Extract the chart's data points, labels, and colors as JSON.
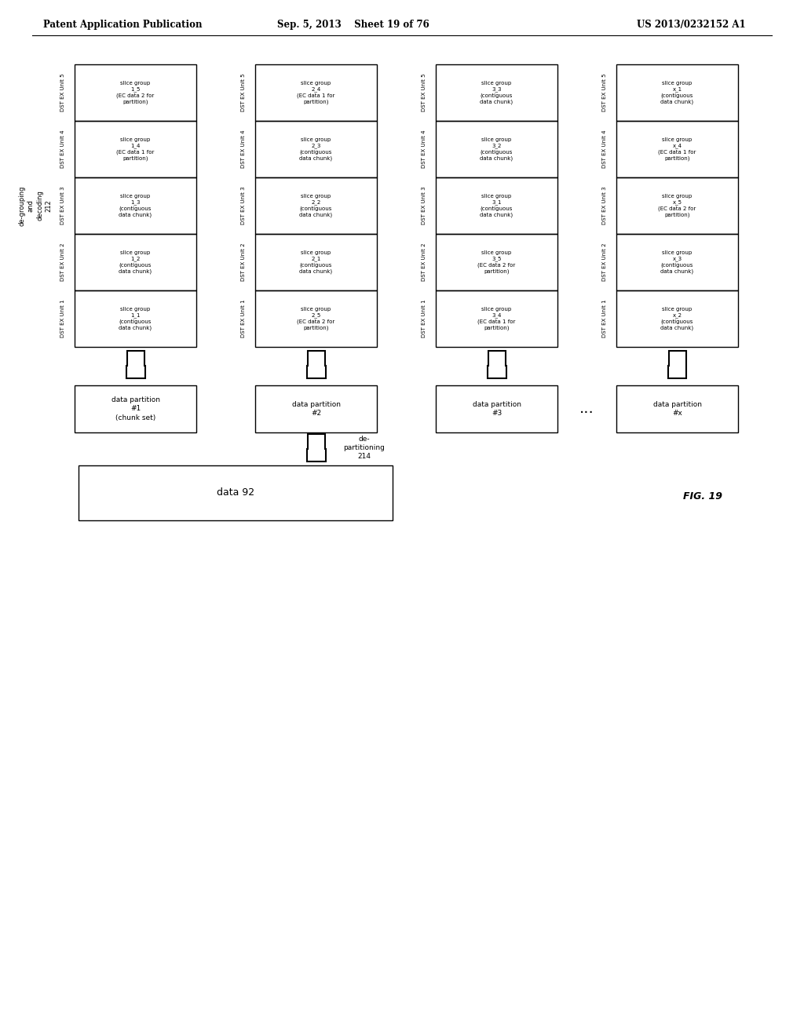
{
  "header_left": "Patent Application Publication",
  "header_mid": "Sep. 5, 2013   Sheet 19 of 76",
  "header_right": "US 2013/0232152 A1",
  "fig_label": "FIG. 19",
  "groups": [
    {
      "units": [
        "DST EX Unit 1",
        "DST EX Unit 2",
        "DST EX Unit 3",
        "DST EX Unit 4",
        "DST EX Unit 5"
      ],
      "cells": [
        "slice group\n1_1\n(contiguous\ndata chunk)",
        "slice group\n1_2\n(contiguous\ndata chunk)",
        "slice group\n1_3\n(contiguous\ndata chunk)",
        "slice group\n1_4\n(EC data 1 for\npartition)",
        "slice group\n1_5\n(EC data 2 for\npartition)"
      ]
    },
    {
      "units": [
        "DST EX Unit 1",
        "DST EX Unit 2",
        "DST EX Unit 3",
        "DST EX Unit 4",
        "DST EX Unit 5"
      ],
      "cells": [
        "slice group\n2_5\n(EC data 2 for\npartition)",
        "slice group\n2_1\n(contiguous\ndata chunk)",
        "slice group\n2_2\n(contiguous\ndata chunk)",
        "slice group\n2_3\n(contiguous\ndata chunk)",
        "slice group\n2_4\n(EC data 1 for\npartition)"
      ]
    },
    {
      "units": [
        "DST EX Unit 1",
        "DST EX Unit 2",
        "DST EX Unit 3",
        "DST EX Unit 4",
        "DST EX Unit 5"
      ],
      "cells": [
        "slice group\n3_4\n(EC data 1 for\npartition)",
        "slice group\n3_5\n(EC data 2 for\npartition)",
        "slice group\n3_1\n(contiguous\ndata chunk)",
        "slice group\n3_2\n(contiguous\ndata chunk)",
        "slice group\n3_3\n(contiguous\ndata chunk)"
      ]
    },
    {
      "units": [
        "DST EX Unit 1",
        "DST EX Unit 2",
        "DST EX Unit 3",
        "DST EX Unit 4",
        "DST EX Unit 5"
      ],
      "cells": [
        "slice group\nx_2\n(contiguous\ndata chunk)",
        "slice group\nx_3\n(contiguous\ndata chunk)",
        "slice group\nx_5\n(EC data 2 for\npartition)",
        "slice group\nx_4\n(EC data 1 for\npartition)",
        "slice group\nx_1\n(contiguous\ndata chunk)"
      ]
    }
  ],
  "degrouping_label": "de-grouping\nand\ndecoding\n212",
  "partitions": [
    "data partition\n#1\n(chunk set)",
    "data partition\n#2",
    "data partition\n#3",
    "data partition\n#x"
  ],
  "dots": "...",
  "departitioning_label": "de-\npartitioning\n214",
  "data_label": "data 92",
  "bg_color": "#ffffff",
  "box_color": "#000000",
  "text_color": "#000000"
}
